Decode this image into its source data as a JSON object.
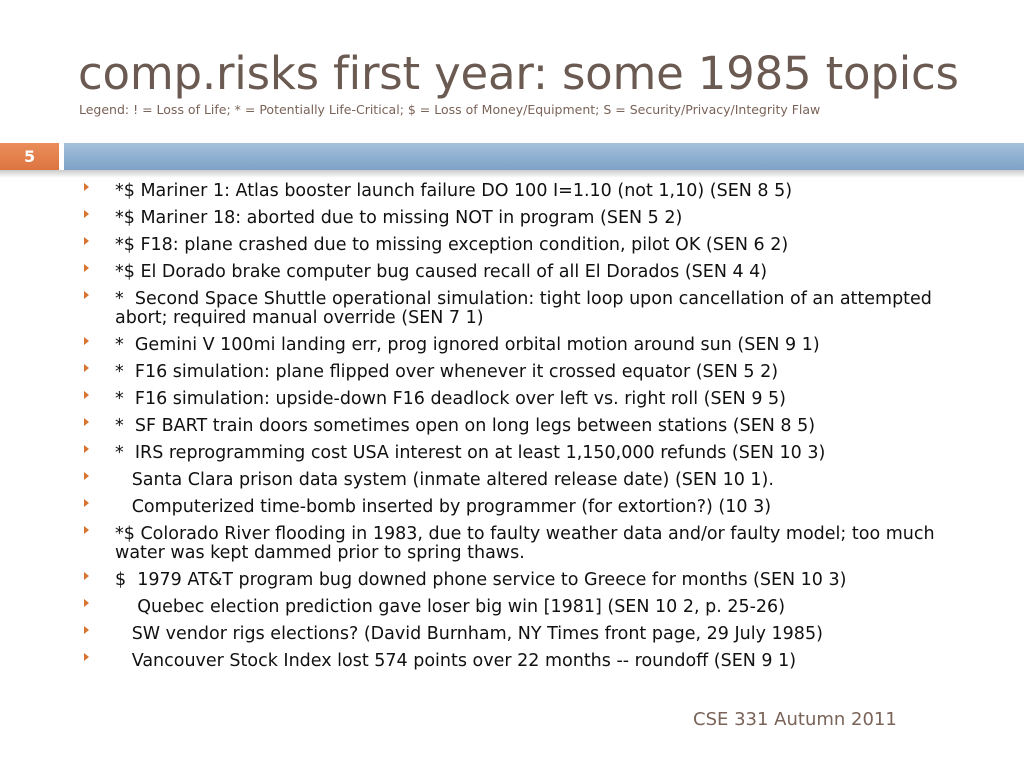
{
  "slide": {
    "title": "comp.risks first year: some 1985 topics",
    "legend": "Legend: ! = Loss of Life; * = Potentially Life-Critical; $ = Loss of Money/Equipment; S = Security/Privacy/Integrity Flaw",
    "number": "5",
    "footer": "CSE 331 Autumn 2011",
    "bullet_icon": "arrow-bullet-icon",
    "colors": {
      "title": "#6b5a51",
      "accent_orange": "#dd7440",
      "divider_blue": "#8fb0d0"
    },
    "items": [
      "*$ Mariner 1: Atlas booster launch failure DO 100 I=1.10 (not 1,10) (SEN 8 5)",
      "*$ Mariner 18: aborted due to missing NOT in program (SEN 5 2)",
      "*$ F18: plane crashed due to missing exception condition, pilot OK (SEN 6 2)",
      "*$ El Dorado brake computer bug caused recall of all El Dorados (SEN 4 4)",
      "*  Second Space Shuttle operational simulation: tight loop upon cancellation of an attempted abort; required manual override (SEN 7 1)",
      "*  Gemini V 100mi landing err, prog ignored orbital motion around sun (SEN 9 1)",
      "*  F16 simulation: plane flipped over whenever it crossed equator (SEN 5 2)",
      "*  F16 simulation: upside-down F16 deadlock over left vs. right roll (SEN 9 5)",
      "*  SF BART train doors sometimes open on long legs between stations (SEN 8 5)",
      "*  IRS reprogramming cost USA interest on at least 1,150,000 refunds (SEN 10 3)",
      "   Santa Clara prison data system (inmate altered release date) (SEN 10 1).",
      "   Computerized time-bomb inserted by programmer (for extortion?) (10 3)",
      "*$ Colorado River flooding in 1983, due to faulty weather data and/or faulty model; too much water was kept dammed prior to spring thaws.",
      "$  1979 AT&T program bug downed phone service to Greece for months (SEN 10 3)",
      "    Quebec election prediction gave loser big win [1981] (SEN 10 2, p. 25-26)",
      "   SW vendor rigs elections? (David Burnham, NY Times front page, 29 July 1985)",
      "   Vancouver Stock Index lost 574 points over 22 months -- roundoff (SEN 9 1)"
    ]
  }
}
